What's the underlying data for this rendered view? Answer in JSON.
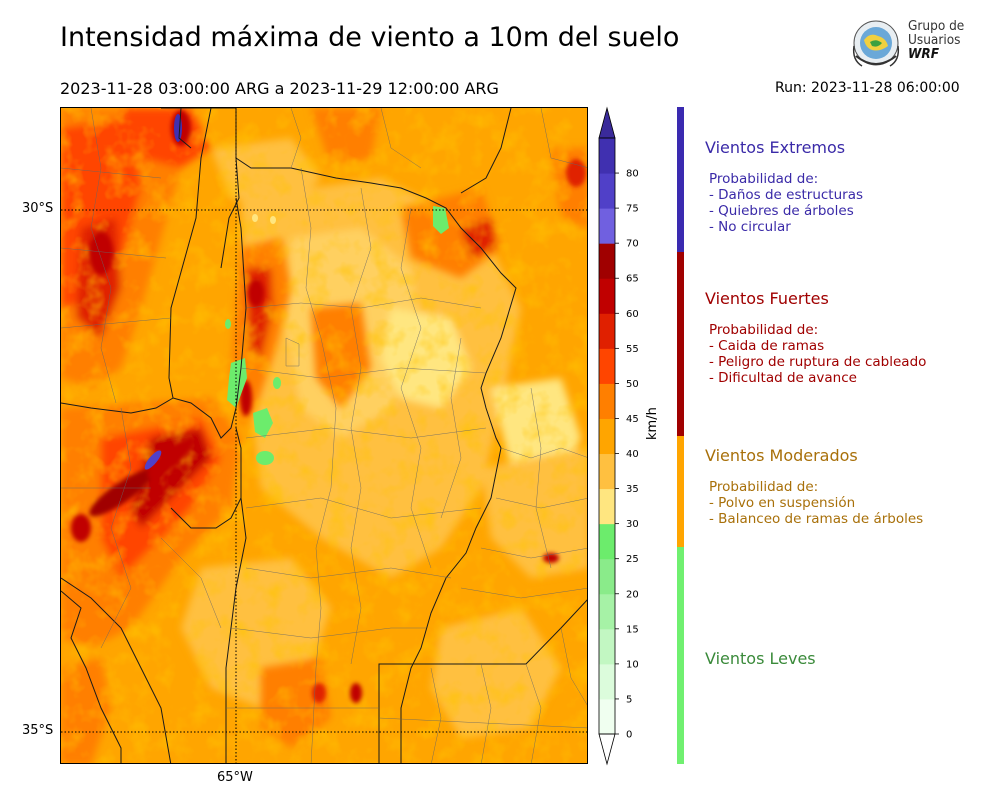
{
  "header": {
    "title": "Intensidad máxima de viento a 10m del suelo",
    "period": "2023-11-28 03:00:00 ARG  a  2023-11-29 12:00:00 ARG",
    "run": "Run: 2023-11-28 06:00:00"
  },
  "logo": {
    "line1": "Grupo de",
    "line2": "Usuarios",
    "line3": "WRF"
  },
  "map": {
    "lat_labels": [
      "30°S",
      "35°S"
    ],
    "lon_labels": [
      "65°W"
    ]
  },
  "colorbar": {
    "unit": "km/h",
    "ticks": [
      "0",
      "5",
      "10",
      "15",
      "20",
      "25",
      "30",
      "35",
      "40",
      "45",
      "50",
      "55",
      "60",
      "65",
      "70",
      "75",
      "80"
    ],
    "colors": [
      "#f0fff0",
      "#dcfcdc",
      "#c2f7c2",
      "#a6f2a6",
      "#8aeb8a",
      "#6cec6c",
      "#ffe680",
      "#ffc040",
      "#ffa500",
      "#ff7f00",
      "#ff4500",
      "#e02000",
      "#c00000",
      "#a00000",
      "#7060e0",
      "#5040c8",
      "#4030b0"
    ],
    "under_color": "#ffffff",
    "over_color": "#3a2a9a"
  },
  "categories": [
    {
      "title": "Vientos Extremos",
      "color": "#3a2aa8",
      "subtitle": "Probabilidad de:",
      "items": [
        "- Daños de estructuras",
        "- Quiebres de árboles",
        "- No circular"
      ]
    },
    {
      "title": "Vientos Fuertes",
      "color": "#a00000",
      "subtitle": "Probabilidad de:",
      "items": [
        "- Caida de ramas",
        "- Peligro de ruptura de cableado",
        "- Dificultad de avance"
      ]
    },
    {
      "title": "Vientos Moderados",
      "color": "#a8700a",
      "subtitle": "Probabilidad de:",
      "items": [
        "- Polvo en suspensión",
        "- Balanceo de ramas de árboles"
      ]
    },
    {
      "title": "Vientos Leves",
      "color": "#3a8a3a",
      "subtitle": "",
      "items": []
    }
  ],
  "strip_colors": {
    "extreme": "#3a2ab0",
    "strong": "#a00000",
    "moderate": "#ffa500",
    "light": "#70f070"
  }
}
